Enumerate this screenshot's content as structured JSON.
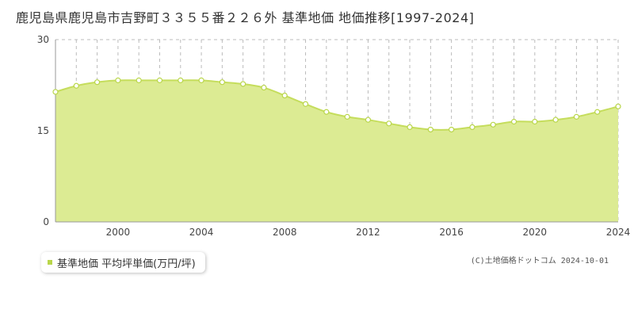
{
  "title": "鹿児島県鹿児島市吉野町３３５５番２２６外 基準地価 地価推移[1997-2024]",
  "legend_label": "基準地価 平均坪単価(万円/坪)",
  "copyright": "(C)土地価格ドットコム 2024-10-01",
  "colors": {
    "fill": "#dceb93",
    "line": "#c5dd5c",
    "marker_stroke": "#b9d64a",
    "grid": "#bbbbbb",
    "legend_swatch": "#b9d64a"
  },
  "chart_data": {
    "type": "area",
    "x_ticks": [
      2000,
      2004,
      2008,
      2012,
      2016,
      2020,
      2024
    ],
    "y_ticks": [
      0,
      15,
      30
    ],
    "xlim": [
      1997,
      2024
    ],
    "ylim": [
      0,
      30
    ],
    "series": [
      {
        "x": [
          1997,
          1998,
          1999,
          2000,
          2001,
          2002,
          2003,
          2004,
          2005,
          2006,
          2007,
          2008,
          2009,
          2010,
          2011,
          2012,
          2013,
          2014,
          2015,
          2016,
          2017,
          2018,
          2019,
          2020,
          2021,
          2022,
          2023,
          2024
        ],
        "y": [
          21.4,
          22.4,
          23.0,
          23.3,
          23.3,
          23.3,
          23.3,
          23.3,
          23.0,
          22.7,
          22.1,
          20.8,
          19.4,
          18.1,
          17.3,
          16.8,
          16.2,
          15.6,
          15.2,
          15.2,
          15.6,
          16.0,
          16.5,
          16.5,
          16.8,
          17.3,
          18.1,
          19.0
        ]
      }
    ]
  }
}
